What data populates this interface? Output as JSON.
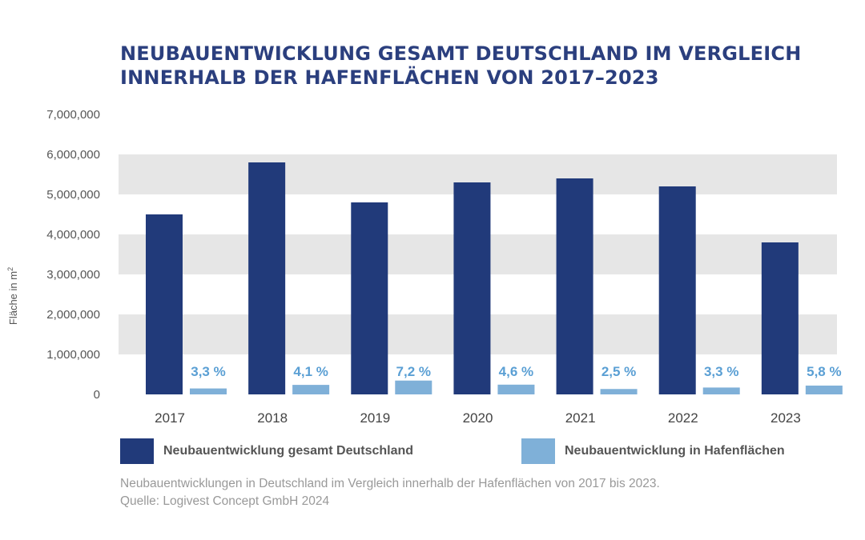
{
  "colors": {
    "title": "#2b3f7e",
    "series_germany": "#213a7a",
    "series_harbor": "#7fb0d8",
    "percent_label": "#5a9fd4",
    "band": "#e6e6e6",
    "axis_text": "#555555"
  },
  "title": {
    "line1": "NEUBAUENTWICKLUNG GESAMT DEUTSCHLAND IM VERGLEICH",
    "line2": "INNERHALB DER HAFENFLÄCHEN VON 2017–2023"
  },
  "legend": {
    "germany": "Neubauentwicklung gesamt Deutschland",
    "harbor": "Neubauentwicklung in Hafenflächen"
  },
  "caption": {
    "line1": "Neubauentwicklungen in Deutschland im Vergleich innerhalb der Hafenflächen von 2017 bis 2023.",
    "line2": "Quelle: Logivest Concept GmbH 2024"
  },
  "chart_data": {
    "type": "bar",
    "categories": [
      "2017",
      "2018",
      "2019",
      "2020",
      "2021",
      "2022",
      "2023"
    ],
    "series": [
      {
        "name": "Neubauentwicklung gesamt Deutschland",
        "values": [
          4500000,
          5800000,
          4800000,
          5300000,
          5400000,
          5200000,
          3800000
        ]
      },
      {
        "name": "Neubauentwicklung in Hafenflächen",
        "values": [
          148500,
          237800,
          345600,
          243800,
          135000,
          171600,
          220400
        ],
        "labels": [
          "3,3 %",
          "4,1 %",
          "7,2 %",
          "4,6 %",
          "2,5 %",
          "3,3 %",
          "5,8 %"
        ]
      }
    ],
    "ylabel": "Fläche in m",
    "ylabel_superscript": "2",
    "ylim": [
      0,
      7000000
    ],
    "yticks": [
      0,
      1000000,
      2000000,
      3000000,
      4000000,
      5000000,
      6000000,
      7000000
    ],
    "ytick_labels": [
      "0",
      "1,000,000",
      "2,000,000",
      "3,000,000",
      "4,000,000",
      "5,000,000",
      "6,000,000",
      "7,000,000"
    ],
    "grid": "alternating horizontal bands",
    "legend_position": "bottom"
  }
}
